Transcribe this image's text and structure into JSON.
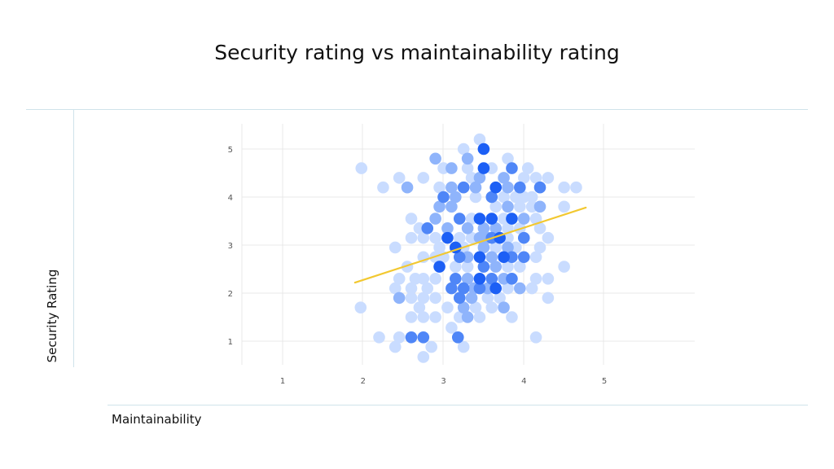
{
  "chart_data": {
    "type": "scatter",
    "title": "Security rating vs maintainability rating",
    "xlabel": "Maintainability",
    "ylabel": "Security Rating",
    "xlim": [
      1,
      5
    ],
    "ylim": [
      1,
      5
    ],
    "x_ticks": [
      "1",
      "2",
      "3",
      "4",
      "5"
    ],
    "y_ticks": [
      "1",
      "2",
      "3",
      "4",
      "5"
    ],
    "grid": true,
    "colors": {
      "points": [
        "#c9dcff",
        "#8fb4fb",
        "#4f86f7",
        "#1c5ff5"
      ],
      "trend": "#f2c830",
      "grid": "#e8e8e8"
    },
    "points": [
      [
        3.45,
        5.2,
        1
      ],
      [
        3.5,
        5.0,
        4
      ],
      [
        3.25,
        5.0,
        1
      ],
      [
        3.3,
        4.8,
        2
      ],
      [
        3.8,
        4.8,
        1
      ],
      [
        2.9,
        4.8,
        2
      ],
      [
        1.98,
        4.6,
        1
      ],
      [
        3.5,
        4.6,
        4
      ],
      [
        3.1,
        4.6,
        2
      ],
      [
        3.3,
        4.6,
        1
      ],
      [
        3.6,
        4.6,
        1
      ],
      [
        3.85,
        4.6,
        3
      ],
      [
        4.05,
        4.6,
        1
      ],
      [
        3.0,
        4.6,
        1
      ],
      [
        2.45,
        4.4,
        1
      ],
      [
        2.75,
        4.4,
        1
      ],
      [
        3.45,
        4.4,
        2
      ],
      [
        3.75,
        4.4,
        2
      ],
      [
        3.35,
        4.4,
        1
      ],
      [
        4.0,
        4.4,
        1
      ],
      [
        4.15,
        4.4,
        1
      ],
      [
        4.3,
        4.4,
        1
      ],
      [
        2.25,
        4.2,
        1
      ],
      [
        2.55,
        4.2,
        2
      ],
      [
        2.95,
        4.2,
        1
      ],
      [
        3.1,
        4.2,
        2
      ],
      [
        3.25,
        4.2,
        3
      ],
      [
        3.4,
        4.2,
        2
      ],
      [
        3.65,
        4.2,
        4
      ],
      [
        3.8,
        4.2,
        2
      ],
      [
        3.95,
        4.2,
        3
      ],
      [
        4.2,
        4.2,
        3
      ],
      [
        4.5,
        4.2,
        1
      ],
      [
        4.65,
        4.2,
        1
      ],
      [
        3.0,
        4.0,
        3
      ],
      [
        3.15,
        4.0,
        2
      ],
      [
        3.6,
        4.0,
        3
      ],
      [
        3.75,
        4.0,
        1
      ],
      [
        3.9,
        4.0,
        1
      ],
      [
        4.0,
        4.0,
        1
      ],
      [
        4.1,
        4.0,
        1
      ],
      [
        3.4,
        4.0,
        1
      ],
      [
        2.95,
        3.8,
        2
      ],
      [
        3.1,
        3.8,
        2
      ],
      [
        3.8,
        3.8,
        2
      ],
      [
        3.95,
        3.8,
        1
      ],
      [
        4.1,
        3.8,
        1
      ],
      [
        4.2,
        3.8,
        2
      ],
      [
        4.5,
        3.8,
        1
      ],
      [
        3.65,
        3.8,
        1
      ],
      [
        2.6,
        3.55,
        1
      ],
      [
        2.9,
        3.55,
        2
      ],
      [
        3.2,
        3.55,
        3
      ],
      [
        3.35,
        3.55,
        1
      ],
      [
        3.45,
        3.55,
        4
      ],
      [
        3.6,
        3.55,
        4
      ],
      [
        3.85,
        3.55,
        4
      ],
      [
        4.0,
        3.55,
        2
      ],
      [
        4.15,
        3.55,
        1
      ],
      [
        3.75,
        3.55,
        1
      ],
      [
        2.7,
        3.35,
        1
      ],
      [
        2.8,
        3.35,
        3
      ],
      [
        3.05,
        3.35,
        2
      ],
      [
        3.3,
        3.35,
        2
      ],
      [
        3.5,
        3.35,
        2
      ],
      [
        3.65,
        3.35,
        2
      ],
      [
        3.8,
        3.35,
        1
      ],
      [
        3.95,
        3.35,
        1
      ],
      [
        4.2,
        3.35,
        1
      ],
      [
        2.6,
        3.15,
        1
      ],
      [
        2.75,
        3.15,
        1
      ],
      [
        2.9,
        3.15,
        1
      ],
      [
        3.05,
        3.15,
        4
      ],
      [
        3.2,
        3.15,
        1
      ],
      [
        3.35,
        3.15,
        1
      ],
      [
        3.45,
        3.15,
        2
      ],
      [
        3.55,
        3.15,
        2
      ],
      [
        3.7,
        3.15,
        4
      ],
      [
        3.8,
        3.15,
        1
      ],
      [
        4.0,
        3.15,
        3
      ],
      [
        4.3,
        3.15,
        1
      ],
      [
        3.6,
        3.15,
        3
      ],
      [
        2.4,
        2.95,
        1
      ],
      [
        2.95,
        2.95,
        1
      ],
      [
        3.15,
        2.95,
        4
      ],
      [
        3.25,
        2.95,
        1
      ],
      [
        3.5,
        2.95,
        2
      ],
      [
        3.65,
        2.95,
        1
      ],
      [
        3.8,
        2.95,
        2
      ],
      [
        3.9,
        2.95,
        1
      ],
      [
        4.2,
        2.95,
        1
      ],
      [
        2.75,
        2.75,
        1
      ],
      [
        2.9,
        2.75,
        1
      ],
      [
        3.0,
        2.75,
        1
      ],
      [
        3.2,
        2.75,
        3
      ],
      [
        3.3,
        2.75,
        2
      ],
      [
        3.45,
        2.75,
        4
      ],
      [
        3.6,
        2.75,
        2
      ],
      [
        3.75,
        2.75,
        4
      ],
      [
        3.85,
        2.75,
        3
      ],
      [
        4.0,
        2.75,
        3
      ],
      [
        4.15,
        2.75,
        1
      ],
      [
        2.55,
        2.55,
        1
      ],
      [
        2.95,
        2.55,
        4
      ],
      [
        3.15,
        2.55,
        1
      ],
      [
        3.3,
        2.55,
        1
      ],
      [
        3.5,
        2.55,
        3
      ],
      [
        3.65,
        2.55,
        2
      ],
      [
        3.8,
        2.55,
        1
      ],
      [
        3.95,
        2.55,
        1
      ],
      [
        4.5,
        2.55,
        1
      ],
      [
        2.45,
        2.3,
        1
      ],
      [
        2.65,
        2.3,
        1
      ],
      [
        2.75,
        2.3,
        1
      ],
      [
        2.9,
        2.3,
        1
      ],
      [
        3.15,
        2.3,
        3
      ],
      [
        3.3,
        2.3,
        2
      ],
      [
        3.45,
        2.3,
        4
      ],
      [
        3.6,
        2.3,
        3
      ],
      [
        3.75,
        2.3,
        2
      ],
      [
        3.85,
        2.3,
        3
      ],
      [
        4.15,
        2.3,
        1
      ],
      [
        4.3,
        2.3,
        1
      ],
      [
        2.4,
        2.1,
        1
      ],
      [
        2.6,
        2.1,
        1
      ],
      [
        2.8,
        2.1,
        1
      ],
      [
        3.1,
        2.1,
        3
      ],
      [
        3.25,
        2.1,
        3
      ],
      [
        3.45,
        2.1,
        3
      ],
      [
        3.55,
        2.1,
        2
      ],
      [
        3.65,
        2.1,
        4
      ],
      [
        3.8,
        2.1,
        1
      ],
      [
        3.95,
        2.1,
        2
      ],
      [
        4.1,
        2.1,
        1
      ],
      [
        3.38,
        2.1,
        2
      ],
      [
        2.45,
        1.9,
        2
      ],
      [
        2.6,
        1.9,
        1
      ],
      [
        2.75,
        1.9,
        1
      ],
      [
        2.9,
        1.9,
        1
      ],
      [
        3.2,
        1.9,
        3
      ],
      [
        3.35,
        1.9,
        2
      ],
      [
        3.55,
        1.9,
        1
      ],
      [
        3.7,
        1.9,
        1
      ],
      [
        4.3,
        1.9,
        1
      ],
      [
        1.97,
        1.7,
        1
      ],
      [
        2.7,
        1.7,
        1
      ],
      [
        3.25,
        1.7,
        2
      ],
      [
        3.4,
        1.7,
        1
      ],
      [
        3.6,
        1.7,
        1
      ],
      [
        3.75,
        1.7,
        2
      ],
      [
        3.05,
        1.7,
        1
      ],
      [
        2.6,
        1.5,
        1
      ],
      [
        2.75,
        1.5,
        1
      ],
      [
        2.9,
        1.5,
        1
      ],
      [
        3.2,
        1.5,
        1
      ],
      [
        3.3,
        1.5,
        2
      ],
      [
        3.45,
        1.5,
        1
      ],
      [
        3.85,
        1.5,
        1
      ],
      [
        3.1,
        1.28,
        1
      ],
      [
        2.2,
        1.08,
        1
      ],
      [
        2.45,
        1.08,
        1
      ],
      [
        2.6,
        1.08,
        3
      ],
      [
        2.75,
        1.08,
        3
      ],
      [
        3.18,
        1.08,
        3
      ],
      [
        4.15,
        1.08,
        1
      ],
      [
        2.4,
        0.88,
        1
      ],
      [
        2.85,
        0.88,
        1
      ],
      [
        3.25,
        0.88,
        1
      ],
      [
        2.75,
        0.67,
        1
      ]
    ],
    "trendline": [
      [
        1.9,
        2.22
      ],
      [
        4.77,
        3.78
      ]
    ]
  }
}
